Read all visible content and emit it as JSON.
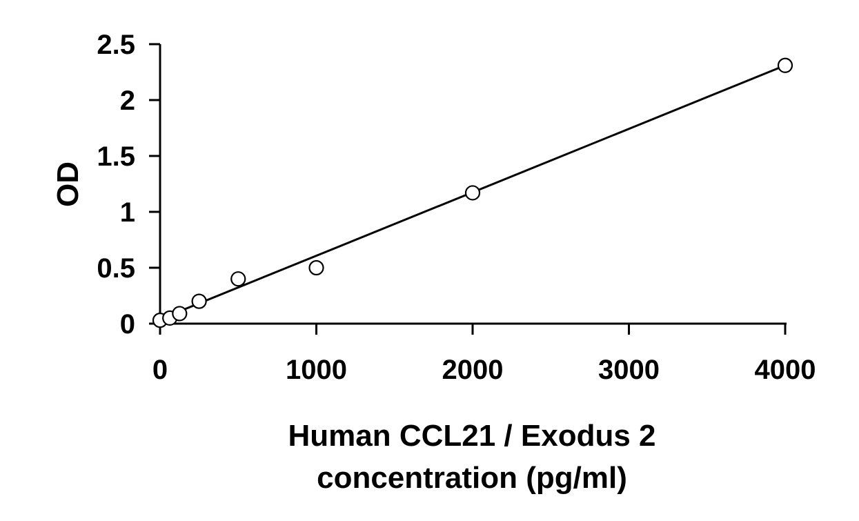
{
  "chart_data": {
    "type": "scatter",
    "title": "",
    "xlabel_lines": [
      "Human CCL21 / Exodus 2",
      "concentration (pg/ml)"
    ],
    "ylabel": "OD",
    "xlim": [
      0,
      4000
    ],
    "ylim": [
      0,
      2.5
    ],
    "x_ticks": [
      0,
      1000,
      2000,
      3000,
      4000
    ],
    "x_tick_labels": [
      "0",
      "1000",
      "2000",
      "3000",
      "4000"
    ],
    "y_ticks": [
      0,
      0.5,
      1,
      1.5,
      2,
      2.5
    ],
    "y_tick_labels": [
      "0",
      "0.5",
      "1",
      "1.5",
      "2",
      "2.5"
    ],
    "grid": false,
    "legend": "none",
    "series": [
      {
        "x": [
          0,
          62.5,
          125,
          250,
          500,
          1000,
          2000,
          4000
        ],
        "y": [
          0.03,
          0.05,
          0.09,
          0.2,
          0.4,
          0.5,
          1.17,
          2.31
        ],
        "marker": "open-circle"
      }
    ],
    "trendline": {
      "type": "linear",
      "x": [
        0,
        4000
      ],
      "y": [
        0.04,
        2.31
      ]
    },
    "colors": {
      "axis": "#000000",
      "marker_stroke": "#000000",
      "marker_fill": "#ffffff",
      "line": "#000000"
    }
  }
}
